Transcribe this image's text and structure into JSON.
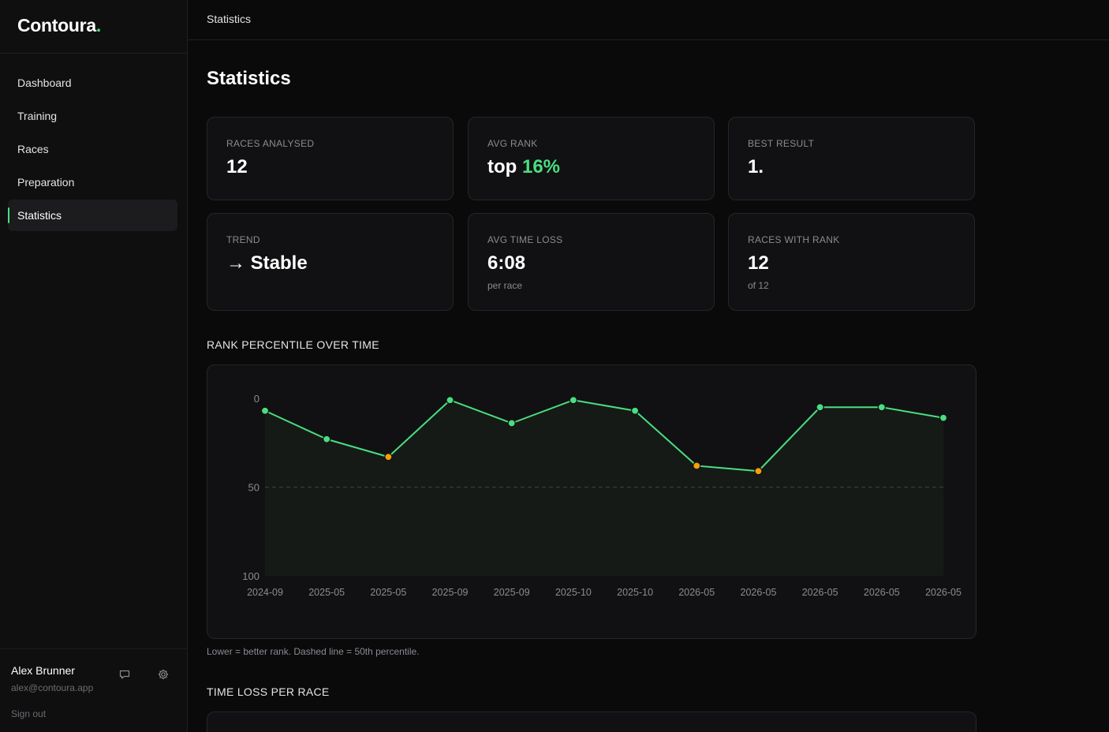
{
  "brand": {
    "name": "Contoura",
    "dot": "."
  },
  "nav": [
    {
      "label": "Dashboard",
      "active": false
    },
    {
      "label": "Training",
      "active": false
    },
    {
      "label": "Races",
      "active": false
    },
    {
      "label": "Preparation",
      "active": false
    },
    {
      "label": "Statistics",
      "active": true
    }
  ],
  "user": {
    "name": "Alex Brunner",
    "email": "alex@contoura.app",
    "signout": "Sign out",
    "icons": [
      "chat-icon",
      "gear-icon"
    ]
  },
  "topbar": {
    "breadcrumb": "Statistics"
  },
  "page": {
    "title": "Statistics"
  },
  "stats": {
    "races_analysed": {
      "label": "RACES ANALYSED",
      "value": "12"
    },
    "avg_rank": {
      "label": "AVG RANK",
      "prefix": "top",
      "value": "16%"
    },
    "best_result": {
      "label": "BEST RESULT",
      "value": "1."
    },
    "trend": {
      "label": "TREND",
      "arrow": "→",
      "value": "Stable"
    },
    "avg_time_loss": {
      "label": "AVG TIME LOSS",
      "value": "6:08",
      "sub": "per race"
    },
    "races_with_rank": {
      "label": "RACES WITH RANK",
      "value": "12",
      "sub": "of 12"
    }
  },
  "sections": {
    "rank_chart_title": "RANK PERCENTILE OVER TIME",
    "rank_chart_caption": "Lower = better rank. Dashed line = 50th percentile.",
    "time_loss_title": "TIME LOSS PER RACE"
  },
  "colors": {
    "accent": "#4ade80",
    "warning": "#f59e0b",
    "trend": "#facc15"
  },
  "chart_data": {
    "type": "line",
    "title": "RANK PERCENTILE OVER TIME",
    "x": [
      "2024-09",
      "2025-05",
      "2025-05",
      "2025-09",
      "2025-09",
      "2025-10",
      "2025-10",
      "2026-05",
      "2026-05",
      "2026-05",
      "2026-05",
      "2026-05"
    ],
    "series": [
      {
        "values": [
          7,
          23,
          33,
          1,
          14,
          1,
          7,
          38,
          41,
          5,
          5,
          11
        ]
      }
    ],
    "point_status": [
      "good",
      "good",
      "warn",
      "good",
      "good",
      "good",
      "good",
      "warn",
      "warn",
      "good",
      "good",
      "good"
    ],
    "y_ticks": [
      0,
      50,
      100
    ],
    "ylim": [
      0,
      100
    ],
    "y_inverted": true,
    "reference_line": 50,
    "xlabel": "",
    "ylabel": ""
  }
}
